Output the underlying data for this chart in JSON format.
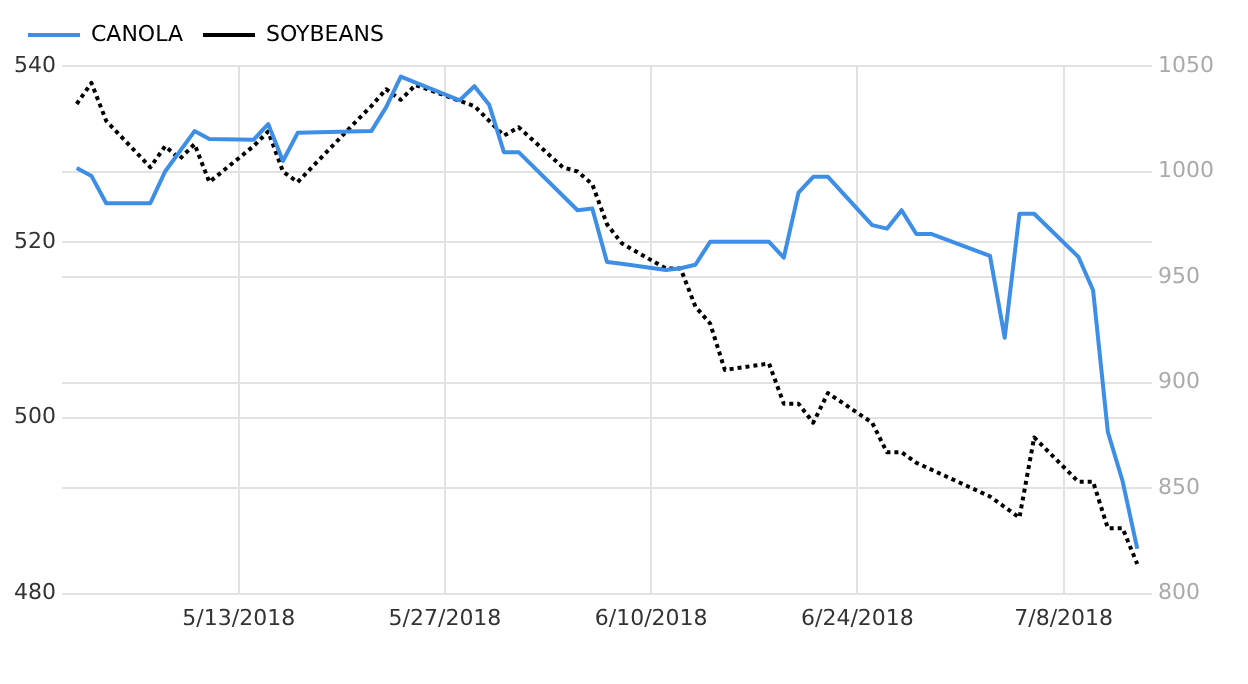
{
  "chart_data": {
    "type": "line",
    "legend": "top left",
    "grid": true,
    "marker": "none",
    "xlim": [
      "2018-05-01",
      "2018-07-14"
    ],
    "xticks": [
      {
        "value": "2018-05-13",
        "label": "5/13/2018"
      },
      {
        "value": "2018-05-27",
        "label": "5/27/2018"
      },
      {
        "value": "2018-06-10",
        "label": "6/10/2018"
      },
      {
        "value": "2018-06-24",
        "label": "6/24/2018"
      },
      {
        "value": "2018-07-08",
        "label": "7/8/2018"
      }
    ],
    "ylim": [
      480,
      540
    ],
    "yticks": [
      480,
      500,
      520,
      540
    ],
    "y2lim": [
      800,
      1050
    ],
    "y2ticks": [
      800,
      850,
      900,
      950,
      1000,
      1050
    ],
    "series": [
      {
        "name": "CANOLA",
        "color": "#3d8ee6",
        "line_style": "solid",
        "x": [
          "2018-05-02",
          "2018-05-03",
          "2018-05-04",
          "2018-05-07",
          "2018-05-08",
          "2018-05-10",
          "2018-05-11",
          "2018-05-14",
          "2018-05-15",
          "2018-05-16",
          "2018-05-17",
          "2018-05-22",
          "2018-05-23",
          "2018-05-24",
          "2018-05-28",
          "2018-05-29",
          "2018-05-30",
          "2018-05-31",
          "2018-06-01",
          "2018-06-05",
          "2018-06-06",
          "2018-06-07",
          "2018-06-08",
          "2018-06-11",
          "2018-06-12",
          "2018-06-13",
          "2018-06-14",
          "2018-06-18",
          "2018-06-19",
          "2018-06-20",
          "2018-06-21",
          "2018-06-22",
          "2018-06-25",
          "2018-06-26",
          "2018-06-27",
          "2018-06-28",
          "2018-06-29",
          "2018-07-03",
          "2018-07-04",
          "2018-07-05",
          "2018-07-06",
          "2018-07-09",
          "2018-07-10",
          "2018-07-11",
          "2018-07-12",
          "2018-07-13"
        ],
        "values": [
          528.4,
          527.5,
          524.4,
          524.4,
          528,
          532.6,
          531.7,
          531.6,
          533.4,
          529.2,
          532.4,
          532.6,
          535.3,
          538.8,
          536.1,
          537.7,
          535.6,
          530.2,
          530.2,
          523.6,
          523.8,
          517.7,
          517.5,
          516.8,
          517,
          517.4,
          520,
          520,
          518.2,
          525.6,
          527.4,
          527.4,
          521.9,
          521.5,
          523.6,
          520.9,
          520.9,
          518.4,
          509.1,
          523.2,
          523.2,
          518.3,
          514.5,
          498.4,
          492.8,
          485.1
        ]
      },
      {
        "name": "SOYBEANS",
        "color": "#000000",
        "line_style": "dotted",
        "axis": "y2",
        "x": [
          "2018-05-02",
          "2018-05-03",
          "2018-05-04",
          "2018-05-07",
          "2018-05-08",
          "2018-05-09",
          "2018-05-10",
          "2018-05-11",
          "2018-05-14",
          "2018-05-15",
          "2018-05-16",
          "2018-05-17",
          "2018-05-21",
          "2018-05-22",
          "2018-05-23",
          "2018-05-24",
          "2018-05-25",
          "2018-05-29",
          "2018-05-31",
          "2018-06-01",
          "2018-06-04",
          "2018-06-05",
          "2018-06-06",
          "2018-06-07",
          "2018-06-08",
          "2018-06-11",
          "2018-06-12",
          "2018-06-13",
          "2018-06-14",
          "2018-06-15",
          "2018-06-18",
          "2018-06-19",
          "2018-06-20",
          "2018-06-21",
          "2018-06-22",
          "2018-06-25",
          "2018-06-26",
          "2018-06-27",
          "2018-06-28",
          "2018-07-03",
          "2018-07-05",
          "2018-07-06",
          "2018-07-09",
          "2018-07-10",
          "2018-07-11",
          "2018-07-12",
          "2018-07-13"
        ],
        "values": [
          1032,
          1042,
          1024,
          1002,
          1012,
          1006,
          1013,
          995,
          1012,
          1019,
          1000,
          995,
          1024,
          1031,
          1039,
          1034,
          1041,
          1031,
          1017,
          1021,
          1002,
          1000,
          994,
          975,
          966,
          954,
          954,
          936,
          928,
          906,
          909,
          890,
          890,
          881,
          895,
          881,
          867,
          867,
          862,
          846,
          836,
          874,
          853,
          853,
          831,
          831,
          814
        ]
      }
    ]
  }
}
